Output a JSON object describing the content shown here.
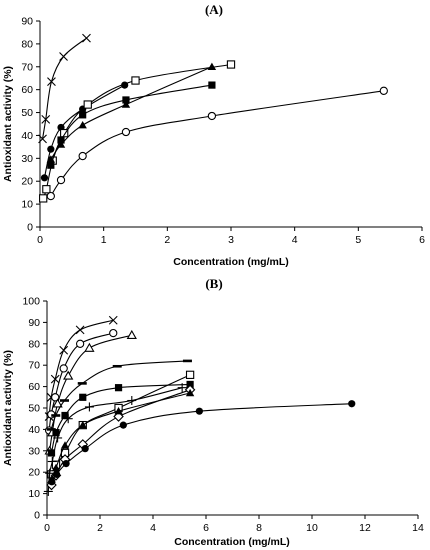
{
  "chart_data": [
    {
      "panel_label": "(A)",
      "type": "scatter",
      "xlabel": "Concentration (mg/mL)",
      "ylabel": "Antioxidant activity (%)",
      "xlim": [
        0,
        6
      ],
      "ylim": [
        0,
        90
      ],
      "xticks": [
        0,
        1,
        2,
        3,
        4,
        5,
        6
      ],
      "yticks": [
        0,
        10,
        20,
        30,
        40,
        50,
        60,
        70,
        80,
        90
      ],
      "grid": false,
      "legend": "none",
      "series": [
        {
          "marker": "x-mark",
          "x": [
            0.04,
            0.09,
            0.18,
            0.37,
            0.73
          ],
          "y": [
            38.5,
            47,
            63.5,
            74.5,
            82.5
          ]
        },
        {
          "marker": "filled-circle",
          "x": [
            0.07,
            0.17,
            0.33,
            0.67,
            1.33
          ],
          "y": [
            21.5,
            34,
            43.5,
            51.5,
            62
          ]
        },
        {
          "marker": "open-square",
          "x": [
            0.05,
            0.1,
            0.2,
            0.38,
            0.75,
            1.5,
            3.0
          ],
          "y": [
            12.5,
            16.5,
            29,
            41,
            53.5,
            64,
            71
          ]
        },
        {
          "marker": "filled-square",
          "x": [
            0.17,
            0.33,
            0.67,
            1.35,
            2.7
          ],
          "y": [
            27,
            38,
            49,
            55.5,
            62
          ]
        },
        {
          "marker": "filled-triangle",
          "x": [
            0.17,
            0.33,
            0.67,
            1.35,
            2.7
          ],
          "y": [
            29.5,
            36,
            44.5,
            53.5,
            70
          ]
        },
        {
          "marker": "open-circle",
          "x": [
            0.17,
            0.33,
            0.67,
            1.35,
            2.7,
            5.4
          ],
          "y": [
            13.5,
            20.5,
            31,
            41.5,
            48.5,
            59.5
          ]
        }
      ]
    },
    {
      "panel_label": "(B)",
      "type": "scatter",
      "xlabel": "Concentration (mg/mL)",
      "ylabel": "Antioxidant activity (%)",
      "xlim": [
        0,
        14
      ],
      "ylim": [
        0,
        100
      ],
      "xticks": [
        0,
        2,
        4,
        6,
        8,
        10,
        12,
        14
      ],
      "yticks": [
        0,
        10,
        20,
        30,
        40,
        50,
        60,
        70,
        80,
        90,
        100
      ],
      "grid": false,
      "legend": "none",
      "series": [
        {
          "marker": "x-mark",
          "x": [
            0.08,
            0.16,
            0.31,
            0.63,
            1.25,
            2.5
          ],
          "y": [
            46,
            55,
            63.5,
            77,
            86.5,
            91
          ]
        },
        {
          "marker": "open-circle",
          "x": [
            0.08,
            0.16,
            0.31,
            0.63,
            1.25,
            2.5
          ],
          "y": [
            39.5,
            47,
            55,
            68.5,
            80,
            85
          ]
        },
        {
          "marker": "open-triangle",
          "x": [
            0.1,
            0.2,
            0.4,
            0.8,
            1.6,
            3.2
          ],
          "y": [
            30,
            38.5,
            52,
            65,
            78,
            84
          ]
        },
        {
          "marker": "dash",
          "x": [
            0.16,
            0.33,
            0.66,
            1.33,
            2.65,
            5.3
          ],
          "y": [
            40,
            46.5,
            53.5,
            61.5,
            69.5,
            72
          ]
        },
        {
          "marker": "filled-square",
          "x": [
            0.17,
            0.34,
            0.68,
            1.35,
            2.7,
            5.4
          ],
          "y": [
            29,
            38.5,
            46.5,
            55,
            59.5,
            61
          ]
        },
        {
          "marker": "open-square",
          "x": [
            0.17,
            0.34,
            0.68,
            1.35,
            2.7,
            5.4
          ],
          "y": [
            19,
            23.5,
            29,
            42,
            50,
            65.5
          ]
        },
        {
          "marker": "plus",
          "x": [
            0.05,
            0.1,
            0.2,
            0.4,
            0.8,
            1.6,
            3.2,
            5.1
          ],
          "y": [
            11,
            19.5,
            25,
            36,
            45,
            50.5,
            53.5,
            59.5
          ]
        },
        {
          "marker": "open-diamond",
          "x": [
            0.17,
            0.34,
            0.68,
            1.35,
            2.7,
            5.4
          ],
          "y": [
            14,
            18.5,
            26,
            33,
            46,
            58.5
          ]
        },
        {
          "marker": "filled-triangle",
          "x": [
            0.17,
            0.34,
            0.68,
            1.35,
            2.7,
            5.4
          ],
          "y": [
            16.5,
            22,
            32.5,
            42,
            48.5,
            57
          ]
        },
        {
          "marker": "filled-circle",
          "x": [
            0.18,
            0.36,
            0.72,
            1.44,
            2.88,
            5.75,
            11.5
          ],
          "y": [
            15.5,
            19,
            24,
            31,
            42,
            48.5,
            52
          ]
        }
      ]
    }
  ]
}
